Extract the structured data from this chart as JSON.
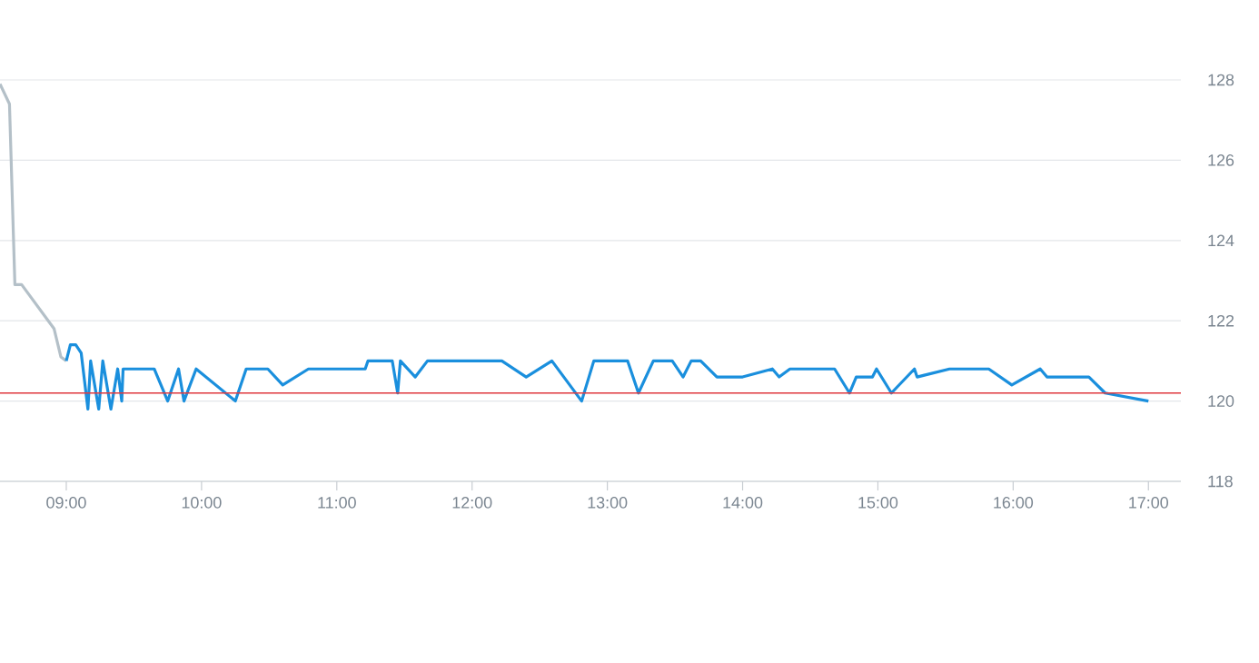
{
  "chart_data": {
    "type": "line",
    "xlim": [
      8.51,
      17.24
    ],
    "ylim": [
      118,
      128
    ],
    "xticks": [
      {
        "value": 9,
        "label": "09:00"
      },
      {
        "value": 10,
        "label": "10:00"
      },
      {
        "value": 11,
        "label": "11:00"
      },
      {
        "value": 12,
        "label": "12:00"
      },
      {
        "value": 13,
        "label": "13:00"
      },
      {
        "value": 14,
        "label": "14:00"
      },
      {
        "value": 15,
        "label": "15:00"
      },
      {
        "value": 16,
        "label": "16:00"
      },
      {
        "value": 17,
        "label": "17:00"
      }
    ],
    "yticks": [
      118,
      120,
      122,
      124,
      126,
      128
    ],
    "grid": "y",
    "marker": "none",
    "line_style": "solid",
    "series": [
      {
        "color": "#b4c0c8",
        "x": [
          8.51,
          8.58,
          8.62,
          8.67,
          8.91,
          8.96,
          9.0
        ],
        "values": [
          127.9,
          127.4,
          122.9,
          122.9,
          121.8,
          121.1,
          121.0
        ]
      },
      {
        "color": "#1a8fdd",
        "x": [
          9.0,
          9.03,
          9.07,
          9.11,
          9.16,
          9.18,
          9.24,
          9.27,
          9.33,
          9.38,
          9.41,
          9.42,
          9.65,
          9.75,
          9.83,
          9.87,
          9.96,
          10.25,
          10.33,
          10.49,
          10.6,
          10.79,
          11.21,
          11.23,
          11.41,
          11.45,
          11.47,
          11.58,
          11.67,
          12.22,
          12.4,
          12.59,
          12.81,
          12.9,
          13.15,
          13.23,
          13.34,
          13.48,
          13.56,
          13.62,
          13.69,
          13.81,
          14.0,
          14.22,
          14.27,
          14.35,
          14.68,
          14.79,
          14.84,
          14.96,
          14.99,
          15.1,
          15.27,
          15.29,
          15.53,
          15.82,
          15.99,
          16.2,
          16.25,
          16.56,
          16.68,
          17.0
        ],
        "values": [
          121.0,
          121.4,
          121.4,
          121.2,
          119.8,
          121.0,
          119.8,
          121.0,
          119.8,
          120.8,
          120.0,
          120.8,
          120.8,
          120.0,
          120.8,
          120.0,
          120.8,
          120.0,
          120.8,
          120.8,
          120.4,
          120.8,
          120.8,
          121.0,
          121.0,
          120.2,
          121.0,
          120.6,
          121.0,
          121.0,
          120.6,
          121.0,
          120.0,
          121.0,
          121.0,
          120.2,
          121.0,
          121.0,
          120.6,
          121.0,
          121.0,
          120.6,
          120.6,
          120.8,
          120.6,
          120.8,
          120.8,
          120.2,
          120.6,
          120.6,
          120.8,
          120.2,
          120.8,
          120.6,
          120.8,
          120.8,
          120.4,
          120.8,
          120.6,
          120.6,
          120.2,
          120.0
        ]
      }
    ],
    "ref_lines": [
      {
        "axis": "y",
        "value": 120.2,
        "color": "#e0393e"
      }
    ]
  }
}
